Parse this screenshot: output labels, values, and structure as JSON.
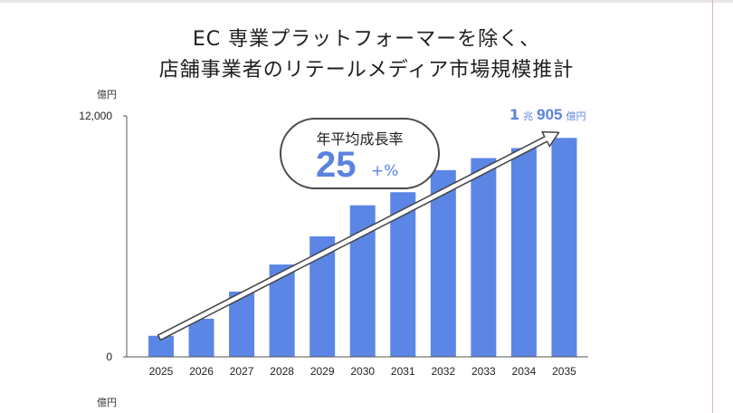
{
  "title_lines": [
    "EC 専業プラットフォーマーを除く、",
    "店舗事業者のリテールメディア市場規模推計"
  ],
  "unit_label": "億円",
  "unit_label_bottom": "億円",
  "growth_callout": {
    "label": "年平均成長率",
    "value": "25",
    "suffix": "+%"
  },
  "final_value_label": {
    "part1": "1",
    "unit1": "兆",
    "part2": "905",
    "unit2": "億円"
  },
  "colors": {
    "bar": "#5b86e5",
    "accent_text": "#5a83e0",
    "axis": "#555555",
    "arrow_outline": "#444444"
  },
  "chart_data": {
    "type": "bar",
    "categories": [
      "2025",
      "2026",
      "2027",
      "2028",
      "2029",
      "2030",
      "2031",
      "2032",
      "2033",
      "2034",
      "2035"
    ],
    "values": [
      1050,
      1900,
      3250,
      4600,
      6000,
      7550,
      8200,
      9300,
      9900,
      10400,
      10905
    ],
    "ylim": [
      0,
      12000
    ],
    "yticks": [
      0,
      12000
    ],
    "ytick_labels": [
      "0",
      "12,000"
    ],
    "grid": false,
    "legend": "none",
    "trend_arrow": true
  }
}
